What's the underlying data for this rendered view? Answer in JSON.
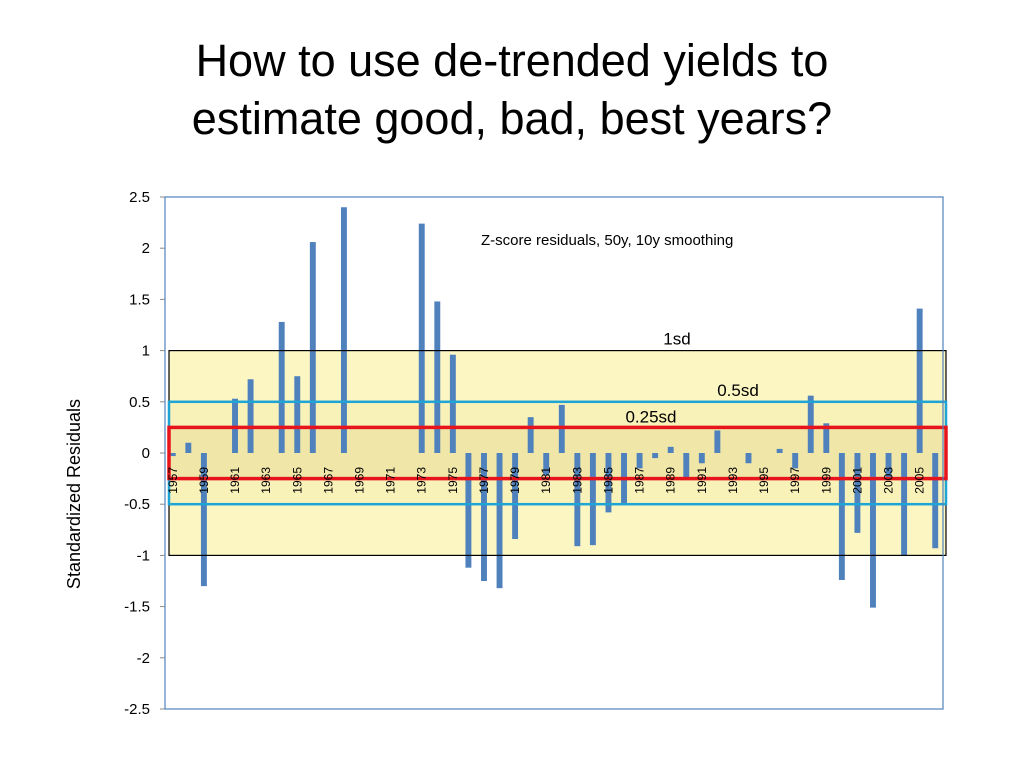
{
  "slide": {
    "title_line1": "How to use de-trended yields to",
    "title_line2": "estimate good, bad, best years?"
  },
  "colors": {
    "bar": "#4f81bd",
    "plot_border": "#4f81bd",
    "band_fill": "#fbf6c2",
    "band_1sd_stroke": "#000000",
    "band_05sd_stroke": "#1fa4d6",
    "band_025sd_stroke": "#e8141b"
  },
  "chart_data": {
    "type": "bar",
    "ylabel": "Standardized Residuals",
    "note": "Z-score residuals, 50y, 10y smoothing",
    "ylim": [
      -2.5,
      2.5
    ],
    "yticks": [
      2.5,
      2,
      1.5,
      1,
      0.5,
      0,
      -0.5,
      -1,
      -1.5,
      -2,
      -2.5
    ],
    "ytick_labels": [
      "2.5",
      "2",
      "1.5",
      "1",
      "0.5",
      "0",
      "-0.5",
      "-1",
      "-1.5",
      "-2",
      "-2.5"
    ],
    "categories": [
      "1957",
      "1958",
      "1959",
      "1960",
      "1961",
      "1962",
      "1963",
      "1964",
      "1965",
      "1966",
      "1967",
      "1968",
      "1969",
      "1970",
      "1971",
      "1972",
      "1973",
      "1974",
      "1975",
      "1976",
      "1977",
      "1978",
      "1979",
      "1980",
      "1981",
      "1982",
      "1983",
      "1984",
      "1985",
      "1986",
      "1987",
      "1988",
      "1989",
      "1990",
      "1991",
      "1992",
      "1993",
      "1994",
      "1995",
      "1996",
      "1997",
      "1998",
      "1999",
      "2000",
      "2001",
      "2002",
      "2003",
      "2004",
      "2005",
      "2006"
    ],
    "shown_tick_labels": [
      "1957",
      "1959",
      "1961",
      "1963",
      "1965",
      "1967",
      "1969",
      "1971",
      "1973",
      "1975",
      "1977",
      "1979",
      "1981",
      "1983",
      "1985",
      "1987",
      "1989",
      "1991",
      "1993",
      "1995",
      "1997",
      "1999",
      "2001",
      "2003",
      "2005"
    ],
    "values": [
      -0.03,
      0.1,
      -1.3,
      0.0,
      0.53,
      0.72,
      0.0,
      1.28,
      0.75,
      2.06,
      0.0,
      2.4,
      0.0,
      0.0,
      0.0,
      0.0,
      2.24,
      1.48,
      0.96,
      -1.12,
      -1.25,
      -1.32,
      -0.84,
      0.35,
      -0.22,
      0.47,
      -0.91,
      -0.9,
      -0.58,
      -0.5,
      -0.15,
      -0.05,
      0.06,
      -0.25,
      -0.1,
      0.22,
      0.0,
      -0.1,
      0.0,
      0.04,
      -0.15,
      0.56,
      0.29,
      -1.24,
      -0.78,
      -1.51,
      -0.25,
      -1.0,
      1.41,
      -0.93
    ],
    "bands": [
      {
        "label": "1sd",
        "low": -1,
        "high": 1
      },
      {
        "label": "0.5sd",
        "low": -0.5,
        "high": 0.5
      },
      {
        "label": "0.25sd",
        "low": -0.25,
        "high": 0.25
      }
    ],
    "grid": false,
    "legend": "none"
  }
}
